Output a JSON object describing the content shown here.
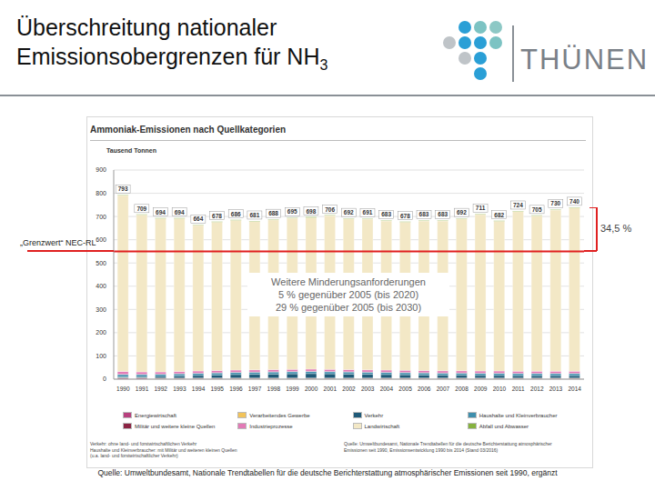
{
  "slide": {
    "title_lines": [
      "Überschreitung nationaler",
      "Emissionsobergrenzen für NH"
    ],
    "title_subscript": "3",
    "logo_text": "THÜNEN",
    "source": "Quelle: Umweltbundesamt, Nationale Trendtabellen für die deutsche Berichterstattung atmosphärischer Emissionen seit 1990, ergänzt"
  },
  "chart_data": {
    "type": "bar",
    "stacked": true,
    "grid": true,
    "title": "Ammoniak-Emissionen nach Quellkategorien",
    "y_label": "Tausend Tonnen",
    "categories": [
      "1990",
      "1991",
      "1992",
      "1993",
      "1994",
      "1995",
      "1996",
      "1997",
      "1998",
      "1999",
      "2000",
      "2001",
      "2002",
      "2003",
      "2004",
      "2005",
      "2006",
      "2007",
      "2008",
      "2009",
      "2010",
      "2011",
      "2012",
      "2013",
      "2014"
    ],
    "ylim": [
      0,
      900
    ],
    "yticks": [
      0,
      100,
      200,
      300,
      400,
      500,
      600,
      700,
      800,
      900
    ],
    "series": [
      {
        "name": "Energiewirtschaft",
        "color": "#b8407e",
        "values": [
          4,
          4,
          3,
          3,
          3,
          3,
          3,
          3,
          3,
          3,
          3,
          3,
          3,
          3,
          3,
          3,
          3,
          3,
          3,
          3,
          3,
          3,
          3,
          3,
          3
        ]
      },
      {
        "name": "Verarbeitendes Gewerbe",
        "color": "#f2c35a",
        "values": [
          2,
          2,
          2,
          2,
          2,
          2,
          2,
          2,
          2,
          2,
          2,
          2,
          2,
          2,
          2,
          2,
          2,
          2,
          2,
          2,
          2,
          2,
          2,
          2,
          2
        ]
      },
      {
        "name": "Verkehr",
        "color": "#1f5a78",
        "values": [
          4,
          5,
          7,
          9,
          11,
          13,
          15,
          16,
          17,
          18,
          19,
          18,
          17,
          16,
          15,
          14,
          13,
          12,
          12,
          11,
          11,
          10,
          10,
          10,
          10
        ]
      },
      {
        "name": "Haushalte und Kleinverbraucher",
        "color": "#3f8fad",
        "values": [
          10,
          9,
          9,
          9,
          9,
          9,
          9,
          9,
          9,
          9,
          9,
          9,
          9,
          9,
          9,
          9,
          9,
          9,
          9,
          9,
          9,
          9,
          9,
          9,
          9
        ]
      },
      {
        "name": "Militär und weitere kleine Quellen",
        "color": "#8c2444",
        "values": [
          1,
          1,
          1,
          1,
          1,
          1,
          1,
          1,
          1,
          1,
          1,
          1,
          1,
          1,
          1,
          1,
          1,
          1,
          1,
          1,
          1,
          1,
          1,
          1,
          1
        ]
      },
      {
        "name": "Industrieprozesse",
        "color": "#e27ab6",
        "values": [
          12,
          10,
          9,
          9,
          9,
          9,
          9,
          9,
          9,
          9,
          9,
          9,
          9,
          9,
          9,
          9,
          9,
          9,
          9,
          9,
          9,
          9,
          9,
          9,
          9
        ]
      },
      {
        "name": "Landwirtschaft",
        "color": "#f3e8c6",
        "values": [
          758,
          676,
          661,
          659,
          627,
          639,
          645,
          639,
          645,
          651,
          653,
          662,
          649,
          649,
          642,
          638,
          644,
          645,
          654,
          674,
          645,
          688,
          669,
          694,
          704
        ]
      },
      {
        "name": "Abfall und Abwasser",
        "color": "#86b23e",
        "values": [
          2,
          2,
          2,
          2,
          2,
          2,
          2,
          2,
          2,
          2,
          2,
          2,
          2,
          2,
          2,
          2,
          2,
          2,
          2,
          2,
          2,
          2,
          2,
          2,
          2
        ]
      }
    ],
    "totals": [
      793,
      709,
      694,
      694,
      664,
      678,
      686,
      681,
      688,
      695,
      698,
      706,
      692,
      691,
      683,
      678,
      683,
      683,
      692,
      711,
      682,
      724,
      705,
      730,
      740
    ],
    "reference_line": {
      "value": 550,
      "label": "„Grenzwert“ NEC-RL",
      "color": "#e02020"
    },
    "exceedance": {
      "from": 550,
      "to": 740,
      "label": "34,5 %"
    },
    "annotation": [
      "Weitere Minderungsanforderungen",
      "5 % gegenüber 2005 (bis 2020)",
      "29 % gegenüber 2005 (bis 2030)"
    ],
    "footnotes": [
      "Verkehr: ohne land- und forstwirtschaftlichen Verkehr",
      "Haushalte und Kleinverbraucher: mit Militär und weiteren kleinen Quellen",
      "(u.a. land- und forstwirtschaftlicher Verkehr)"
    ],
    "chart_source": [
      "Quelle: Umweltbundesamt, Nationale Trendtabellen für die deutsche Berichterstattung atmosphärischer",
      "Emissionen seit 1990, Emissionsentwicklung 1990 bis 2014 (Stand 03/2016)"
    ]
  }
}
